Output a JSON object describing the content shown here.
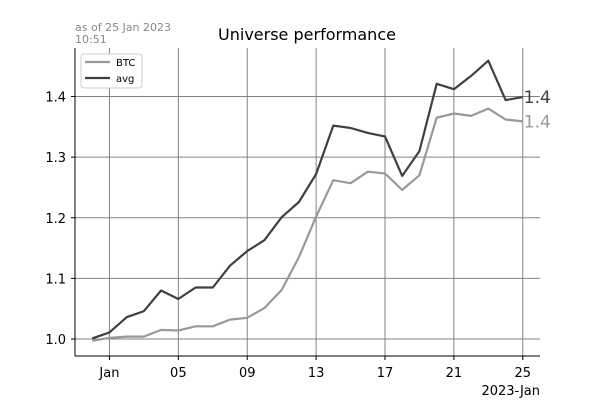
{
  "chart_data": {
    "type": "line",
    "title": "Universe performance",
    "annotation_line1": "as of 25 Jan 2023",
    "annotation_line2": "10:51",
    "x_offset_label": "2023-Jan",
    "xlabel": "",
    "ylabel": "",
    "x_ticks": [
      {
        "date": "2023-01-01",
        "label": "Jan"
      },
      {
        "date": "2023-01-05",
        "label": "05"
      },
      {
        "date": "2023-01-09",
        "label": "09"
      },
      {
        "date": "2023-01-13",
        "label": "13"
      },
      {
        "date": "2023-01-17",
        "label": "17"
      },
      {
        "date": "2023-01-21",
        "label": "21"
      },
      {
        "date": "2023-01-25",
        "label": "25"
      }
    ],
    "y_ticks": [
      1.0,
      1.1,
      1.2,
      1.3,
      1.4
    ],
    "y_tick_labels": [
      "1.0",
      "1.1",
      "1.2",
      "1.3",
      "1.4"
    ],
    "xlim": [
      "2022-12-30",
      "2023-01-26"
    ],
    "ylim": [
      0.972,
      1.48
    ],
    "grid": true,
    "legend_position": "top-left",
    "x": [
      "2022-12-31",
      "2023-01-01",
      "2023-01-02",
      "2023-01-03",
      "2023-01-04",
      "2023-01-05",
      "2023-01-06",
      "2023-01-07",
      "2023-01-08",
      "2023-01-09",
      "2023-01-10",
      "2023-01-11",
      "2023-01-12",
      "2023-01-13",
      "2023-01-14",
      "2023-01-15",
      "2023-01-16",
      "2023-01-17",
      "2023-01-18",
      "2023-01-19",
      "2023-01-20",
      "2023-01-21",
      "2023-01-22",
      "2023-01-23",
      "2023-01-24",
      "2023-01-25"
    ],
    "series": [
      {
        "name": "BTC",
        "color": "#999999",
        "end_label": "1.4",
        "values": [
          0.997,
          1.002,
          1.004,
          1.004,
          1.015,
          1.014,
          1.021,
          1.021,
          1.032,
          1.035,
          1.051,
          1.081,
          1.135,
          1.202,
          1.262,
          1.257,
          1.276,
          1.273,
          1.246,
          1.27,
          1.365,
          1.372,
          1.368,
          1.38,
          1.362,
          1.359
        ]
      },
      {
        "name": "avg",
        "color": "#404040",
        "end_label": "1.4",
        "values": [
          1.001,
          1.011,
          1.036,
          1.046,
          1.08,
          1.066,
          1.085,
          1.085,
          1.121,
          1.145,
          1.163,
          1.201,
          1.226,
          1.272,
          1.352,
          1.348,
          1.34,
          1.334,
          1.269,
          1.31,
          1.421,
          1.412,
          1.434,
          1.459,
          1.394,
          1.399
        ]
      }
    ]
  }
}
